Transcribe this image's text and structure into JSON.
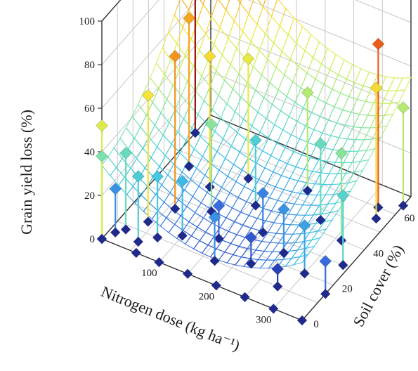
{
  "chart_data": {
    "type": "surface3d",
    "title": "",
    "xlabel": "Nitrogen dose (kg ha⁻¹)",
    "ylabel": "Soil cover (%)",
    "zlabel": "Grain yield loss (%)",
    "xlim": [
      0,
      350
    ],
    "ylim": [
      0,
      70
    ],
    "zlim": [
      0,
      100
    ],
    "x_ticks": [
      "100",
      "200",
      "300"
    ],
    "y_ticks": [
      "0",
      "20",
      "40",
      "60"
    ],
    "z_ticks": [
      "0",
      "20",
      "40",
      "60",
      "80",
      "100"
    ],
    "grid": true,
    "colormap": [
      "#1f2fa8",
      "#3a6fe0",
      "#3bc4e6",
      "#6fe0b4",
      "#c9ef5a",
      "#f5e637",
      "#f5a020",
      "#e52a1a",
      "#8a0a0a"
    ],
    "surface": "peak near 0 kg N and ~65% soil cover, minimum near 200 kg N and 0% soil cover",
    "points": [
      {
        "x": 0,
        "y": 0,
        "z": 0
      },
      {
        "x": 0,
        "y": 0,
        "z": 38
      },
      {
        "x": 0,
        "y": 0,
        "z": 52
      },
      {
        "x": 10,
        "y": 5,
        "z": 20
      },
      {
        "x": 20,
        "y": 8,
        "z": 35
      },
      {
        "x": 40,
        "y": 15,
        "z": 58
      },
      {
        "x": 60,
        "y": 25,
        "z": 70
      },
      {
        "x": 80,
        "y": 40,
        "z": 60
      },
      {
        "x": 0,
        "y": 60,
        "z": 88
      },
      {
        "x": 30,
        "y": 45,
        "z": 68
      },
      {
        "x": 50,
        "y": 5,
        "z": 30
      },
      {
        "x": 60,
        "y": 0,
        "z": 0
      },
      {
        "x": 70,
        "y": 10,
        "z": 28
      },
      {
        "x": 100,
        "y": 0,
        "z": 0
      },
      {
        "x": 100,
        "y": 15,
        "z": 25
      },
      {
        "x": 110,
        "y": 30,
        "z": 40
      },
      {
        "x": 120,
        "y": 50,
        "z": 55
      },
      {
        "x": 150,
        "y": 0,
        "z": 0
      },
      {
        "x": 150,
        "y": 20,
        "z": 15
      },
      {
        "x": 160,
        "y": 40,
        "z": 30
      },
      {
        "x": 170,
        "y": 10,
        "z": 20
      },
      {
        "x": 200,
        "y": 0,
        "z": 0
      },
      {
        "x": 200,
        "y": 30,
        "z": 18
      },
      {
        "x": 210,
        "y": 55,
        "z": 45
      },
      {
        "x": 220,
        "y": 15,
        "z": 12
      },
      {
        "x": 250,
        "y": 0,
        "z": 0
      },
      {
        "x": 250,
        "y": 25,
        "z": 20
      },
      {
        "x": 260,
        "y": 45,
        "z": 35
      },
      {
        "x": 280,
        "y": 10,
        "z": 8
      },
      {
        "x": 300,
        "y": 0,
        "z": 0
      },
      {
        "x": 300,
        "y": 20,
        "z": 22
      },
      {
        "x": 310,
        "y": 40,
        "z": 40
      },
      {
        "x": 320,
        "y": 60,
        "z": 75
      },
      {
        "x": 330,
        "y": 55,
        "z": 60
      },
      {
        "x": 340,
        "y": 30,
        "z": 32
      },
      {
        "x": 350,
        "y": 65,
        "z": 45
      },
      {
        "x": 350,
        "y": 0,
        "z": 0
      },
      {
        "x": 350,
        "y": 15,
        "z": 15
      }
    ]
  }
}
